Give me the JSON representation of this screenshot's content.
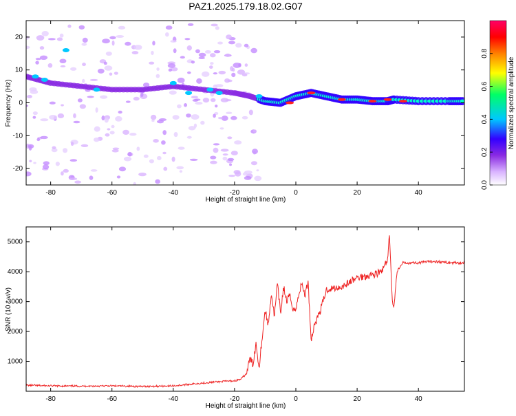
{
  "title": "PAZ1.2025.179.18.02.G07",
  "chart_data": [
    {
      "type": "heatmap",
      "xlabel": "Height of straight line (km)",
      "ylabel": "Frequency (Hz)",
      "xlim": [
        -88,
        55
      ],
      "ylim": [
        -25,
        25
      ],
      "x_ticks": [
        -80,
        -60,
        -40,
        -20,
        0,
        20,
        40
      ],
      "y_ticks": [
        -20,
        -10,
        0,
        10,
        20
      ],
      "colorbar": {
        "label": "Normalized spectral amplitude",
        "range": [
          0.0,
          1.0
        ],
        "ticks": [
          0.0,
          0.2,
          0.4,
          0.6,
          0.8
        ],
        "colors": [
          "#ffffff",
          "#d9b3ff",
          "#8a2be2",
          "#3300ff",
          "#00c8ff",
          "#00ff66",
          "#ffff00",
          "#ff8000",
          "#ff0000",
          "#ff0066"
        ]
      },
      "ridge": {
        "x": [
          -88,
          -80,
          -70,
          -60,
          -50,
          -40,
          -30,
          -20,
          -15,
          -10,
          -5,
          0,
          5,
          10,
          15,
          20,
          25,
          30,
          32,
          40,
          50,
          55
        ],
        "frequency": [
          8,
          6,
          5,
          4,
          4,
          5,
          4,
          3,
          2,
          0.5,
          0,
          2,
          3,
          2,
          1,
          1,
          0.5,
          0.5,
          1,
          0.5,
          0.5,
          0.5
        ]
      }
    },
    {
      "type": "line",
      "xlabel": "Height of straight line (km)",
      "ylabel": "SNR (10 * v/v)",
      "xlim": [
        -88,
        55
      ],
      "ylim": [
        0,
        5500
      ],
      "x_ticks": [
        -80,
        -60,
        -40,
        -20,
        0,
        20,
        40
      ],
      "y_ticks": [
        1000,
        2000,
        3000,
        4000,
        5000
      ],
      "series": [
        {
          "color": "#ee2222",
          "x": [
            -88,
            -80,
            -70,
            -60,
            -50,
            -40,
            -35,
            -30,
            -25,
            -20,
            -18,
            -16,
            -15,
            -14,
            -13,
            -12,
            -11,
            -10,
            -9,
            -8,
            -7,
            -6,
            -5,
            -4,
            -3,
            -2,
            -1,
            0,
            1,
            2,
            3,
            4,
            5,
            6,
            8,
            10,
            15,
            20,
            25,
            28,
            29,
            30,
            30.5,
            31,
            31.5,
            32,
            33,
            35,
            40,
            45,
            50,
            55
          ],
          "y": [
            200,
            180,
            170,
            180,
            160,
            180,
            230,
            280,
            320,
            350,
            400,
            600,
            1100,
            900,
            1600,
            800,
            1800,
            2700,
            2200,
            3300,
            2500,
            3600,
            2600,
            3500,
            3000,
            3200,
            2800,
            2700,
            3300,
            3600,
            3200,
            3700,
            1700,
            2200,
            2700,
            3400,
            3500,
            3800,
            3900,
            4000,
            4200,
            4400,
            5300,
            4200,
            3000,
            2800,
            4000,
            4300,
            4300,
            4350,
            4300,
            4300
          ]
        }
      ]
    }
  ]
}
